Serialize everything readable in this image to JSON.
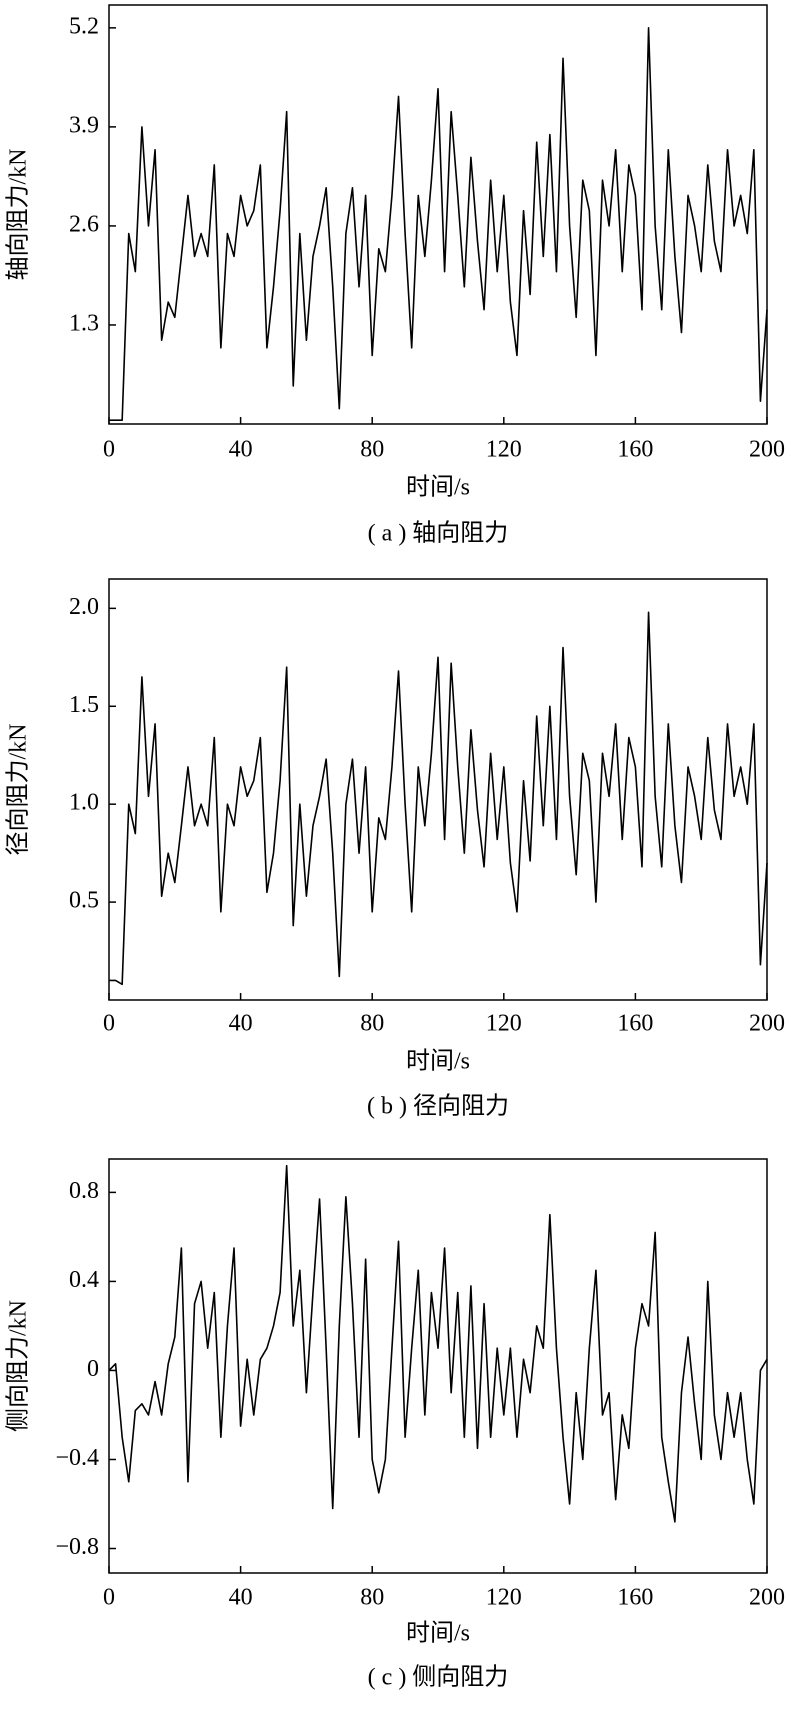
{
  "chart_data": [
    {
      "type": "line",
      "title": "( a ) 轴向阻力",
      "xlabel": "时间/s",
      "ylabel": "轴向阻力/kN",
      "xlim": [
        0,
        200
      ],
      "xticks": [
        0,
        40,
        80,
        120,
        160,
        200
      ],
      "ylim": [
        0,
        5.5
      ],
      "yticks": [
        1.3,
        2.6,
        3.9,
        5.2
      ],
      "color": "#000000",
      "x": [
        0,
        2,
        4,
        6,
        8,
        10,
        12,
        14,
        16,
        18,
        20,
        22,
        24,
        26,
        28,
        30,
        32,
        34,
        36,
        38,
        40,
        42,
        44,
        46,
        48,
        50,
        52,
        54,
        56,
        58,
        60,
        62,
        64,
        66,
        68,
        70,
        72,
        74,
        76,
        78,
        80,
        82,
        84,
        86,
        88,
        90,
        92,
        94,
        96,
        98,
        100,
        102,
        104,
        106,
        108,
        110,
        112,
        114,
        116,
        118,
        120,
        122,
        124,
        126,
        128,
        130,
        132,
        134,
        136,
        138,
        140,
        142,
        144,
        146,
        148,
        150,
        152,
        154,
        156,
        158,
        160,
        162,
        164,
        166,
        168,
        170,
        172,
        174,
        176,
        178,
        180,
        182,
        184,
        186,
        188,
        190,
        192,
        194,
        196,
        198,
        200
      ],
      "values": [
        0.05,
        0.05,
        0.05,
        2.5,
        2.0,
        3.9,
        2.6,
        3.6,
        1.1,
        1.6,
        1.4,
        2.2,
        3.0,
        2.2,
        2.5,
        2.2,
        3.4,
        1.0,
        2.5,
        2.2,
        3.0,
        2.6,
        2.8,
        3.4,
        1.0,
        1.8,
        2.8,
        4.1,
        0.5,
        2.5,
        1.1,
        2.2,
        2.6,
        3.1,
        1.8,
        0.2,
        2.5,
        3.1,
        1.8,
        3.0,
        0.9,
        2.3,
        2.0,
        3.0,
        4.3,
        2.5,
        1.0,
        3.0,
        2.2,
        3.2,
        4.4,
        2.0,
        4.1,
        3.0,
        1.8,
        3.5,
        2.4,
        1.5,
        3.2,
        2.0,
        3.0,
        1.6,
        0.9,
        2.8,
        1.7,
        3.7,
        2.2,
        3.8,
        2.0,
        4.8,
        2.6,
        1.4,
        3.2,
        2.8,
        0.9,
        3.2,
        2.6,
        3.6,
        2.0,
        3.4,
        3.0,
        1.5,
        5.2,
        2.6,
        1.5,
        3.6,
        2.2,
        1.2,
        3.0,
        2.6,
        2.0,
        3.4,
        2.4,
        2.0,
        3.6,
        2.6,
        3.0,
        2.5,
        3.6,
        0.3,
        1.5
      ]
    },
    {
      "type": "line",
      "title": "( b ) 径向阻力",
      "xlabel": "时间/s",
      "ylabel": "径向阻力/kN",
      "xlim": [
        0,
        200
      ],
      "xticks": [
        0,
        40,
        80,
        120,
        160,
        200
      ],
      "ylim": [
        0,
        2.15
      ],
      "yticks": [
        0.5,
        {
          "value": 1,
          "label": "1.0"
        },
        1.5,
        {
          "value": 2,
          "label": "2.0"
        }
      ],
      "color": "#000000",
      "x": [
        0,
        2,
        4,
        6,
        8,
        10,
        12,
        14,
        16,
        18,
        20,
        22,
        24,
        26,
        28,
        30,
        32,
        34,
        36,
        38,
        40,
        42,
        44,
        46,
        48,
        50,
        52,
        54,
        56,
        58,
        60,
        62,
        64,
        66,
        68,
        70,
        72,
        74,
        76,
        78,
        80,
        82,
        84,
        86,
        88,
        90,
        92,
        94,
        96,
        98,
        100,
        102,
        104,
        106,
        108,
        110,
        112,
        114,
        116,
        118,
        120,
        122,
        124,
        126,
        128,
        130,
        132,
        134,
        136,
        138,
        140,
        142,
        144,
        146,
        148,
        150,
        152,
        154,
        156,
        158,
        160,
        162,
        164,
        166,
        168,
        170,
        172,
        174,
        176,
        178,
        180,
        182,
        184,
        186,
        188,
        190,
        192,
        194,
        196,
        198,
        200
      ],
      "values": [
        0.1,
        0.1,
        0.08,
        1.0,
        0.85,
        1.65,
        1.04,
        1.41,
        0.53,
        0.75,
        0.6,
        0.89,
        1.19,
        0.89,
        1.0,
        0.89,
        1.34,
        0.45,
        1.0,
        0.89,
        1.19,
        1.04,
        1.12,
        1.34,
        0.55,
        0.75,
        1.12,
        1.7,
        0.38,
        1.0,
        0.53,
        0.89,
        1.04,
        1.23,
        0.75,
        0.12,
        1.0,
        1.23,
        0.75,
        1.19,
        0.45,
        0.93,
        0.82,
        1.19,
        1.68,
        1.0,
        0.45,
        1.19,
        0.89,
        1.26,
        1.75,
        0.82,
        1.72,
        1.19,
        0.75,
        1.38,
        0.97,
        0.68,
        1.26,
        0.82,
        1.19,
        0.7,
        0.45,
        1.12,
        0.71,
        1.45,
        0.89,
        1.5,
        0.82,
        1.8,
        1.04,
        0.64,
        1.26,
        1.12,
        0.5,
        1.26,
        1.04,
        1.41,
        0.82,
        1.34,
        1.19,
        0.68,
        1.98,
        1.04,
        0.68,
        1.41,
        0.89,
        0.6,
        1.19,
        1.04,
        0.82,
        1.34,
        0.97,
        0.82,
        1.41,
        1.04,
        1.19,
        1.0,
        1.41,
        0.18,
        0.7
      ]
    },
    {
      "type": "line",
      "title": "( c ) 侧向阻力",
      "xlabel": "时间/s",
      "ylabel": "侧向阻力/kN",
      "xlim": [
        0,
        200
      ],
      "xticks": [
        0,
        40,
        80,
        120,
        160,
        200
      ],
      "ylim": [
        -0.91,
        0.95
      ],
      "yticks": [
        {
          "value": -0.8,
          "label": "−0.8"
        },
        {
          "value": -0.4,
          "label": "−0.4"
        },
        0,
        0.4,
        0.8
      ],
      "color": "#000000",
      "x": [
        0,
        2,
        4,
        6,
        8,
        10,
        12,
        14,
        16,
        18,
        20,
        22,
        24,
        26,
        28,
        30,
        32,
        34,
        36,
        38,
        40,
        42,
        44,
        46,
        48,
        50,
        52,
        54,
        56,
        58,
        60,
        62,
        64,
        66,
        68,
        70,
        72,
        74,
        76,
        78,
        80,
        82,
        84,
        86,
        88,
        90,
        92,
        94,
        96,
        98,
        100,
        102,
        104,
        106,
        108,
        110,
        112,
        114,
        116,
        118,
        120,
        122,
        124,
        126,
        128,
        130,
        132,
        134,
        136,
        138,
        140,
        142,
        144,
        146,
        148,
        150,
        152,
        154,
        156,
        158,
        160,
        162,
        164,
        166,
        168,
        170,
        172,
        174,
        176,
        178,
        180,
        182,
        184,
        186,
        188,
        190,
        192,
        194,
        196,
        198,
        200
      ],
      "values": [
        0,
        0.03,
        -0.3,
        -0.5,
        -0.18,
        -0.15,
        -0.2,
        -0.05,
        -0.2,
        0.03,
        0.15,
        0.55,
        -0.5,
        0.3,
        0.4,
        0.1,
        0.35,
        -0.3,
        0.2,
        0.55,
        -0.25,
        0.05,
        -0.2,
        0.05,
        0.1,
        0.2,
        0.35,
        0.92,
        0.2,
        0.45,
        -0.1,
        0.35,
        0.77,
        0.1,
        -0.62,
        0.2,
        0.78,
        0.3,
        -0.3,
        0.5,
        -0.4,
        -0.55,
        -0.4,
        0.1,
        0.58,
        -0.3,
        0.1,
        0.45,
        -0.2,
        0.35,
        0.1,
        0.55,
        -0.1,
        0.35,
        -0.3,
        0.38,
        -0.35,
        0.3,
        -0.3,
        0.1,
        -0.2,
        0.1,
        -0.3,
        0.05,
        -0.1,
        0.2,
        0.1,
        0.7,
        0.1,
        -0.3,
        -0.6,
        -0.1,
        -0.4,
        0.1,
        0.45,
        -0.2,
        -0.1,
        -0.58,
        -0.2,
        -0.35,
        0.1,
        0.3,
        0.2,
        0.62,
        -0.3,
        -0.5,
        -0.68,
        -0.1,
        0.15,
        -0.15,
        -0.4,
        0.4,
        -0.2,
        -0.4,
        -0.1,
        -0.3,
        -0.1,
        -0.4,
        -0.6,
        0,
        0.05
      ]
    }
  ]
}
